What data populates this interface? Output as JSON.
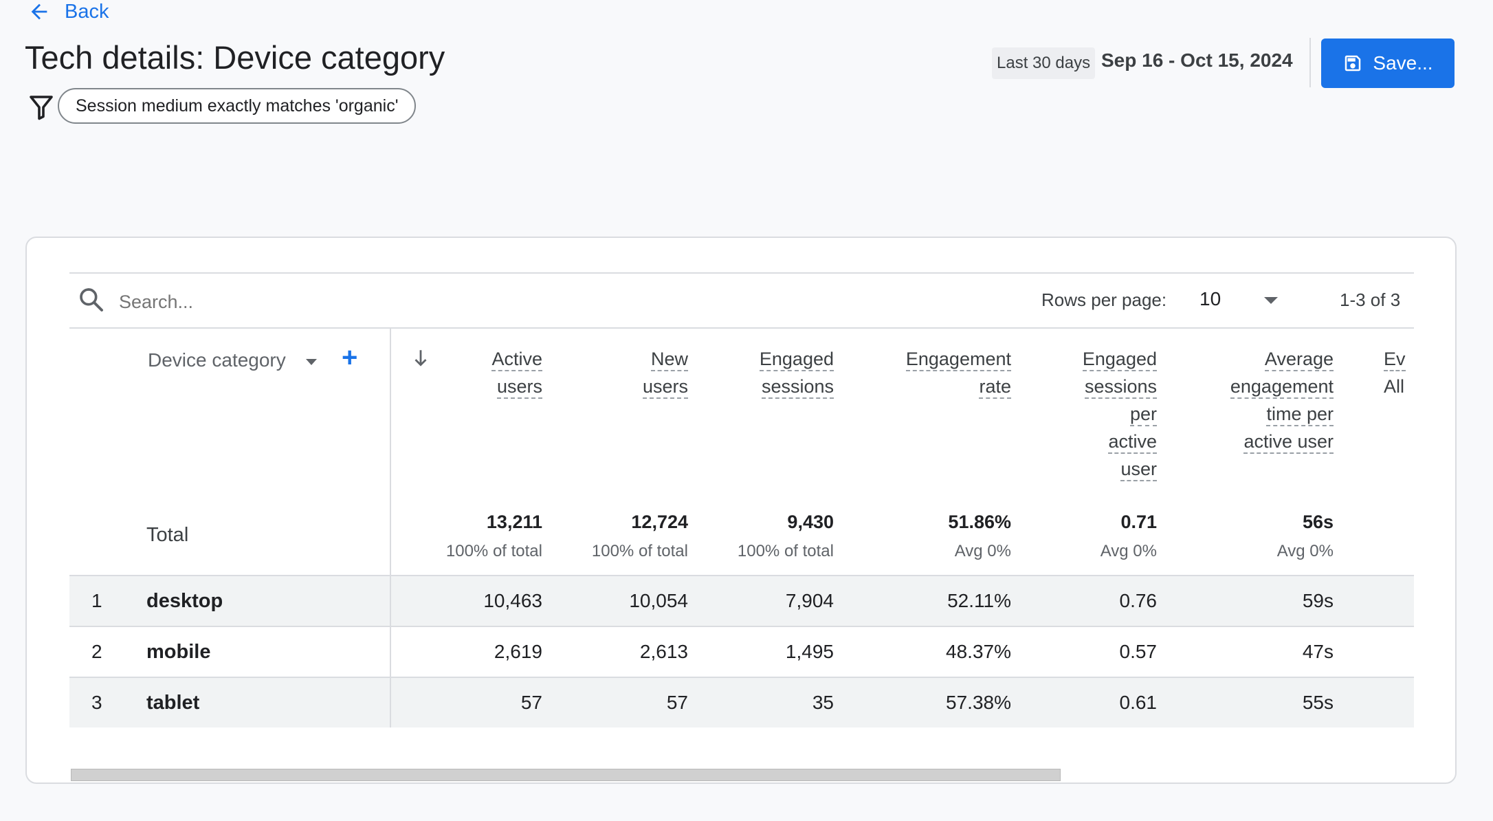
{
  "nav": {
    "back_label": "Back"
  },
  "page": {
    "title": "Tech details: Device category"
  },
  "filter": {
    "chip_label": "Session medium exactly matches 'organic'"
  },
  "date_range": {
    "preset": "Last 30 days",
    "dates": "Sep 16 - Oct 15, 2024"
  },
  "toolbar": {
    "save_label": "Save..."
  },
  "colors": {
    "accent": "#1a73e8"
  },
  "table": {
    "search_placeholder": "Search...",
    "rows_per_page_label": "Rows per page:",
    "rows_per_page_value": "10",
    "pagination": "1-3 of 3",
    "dimension_header": "Device category",
    "add_dimension": "+",
    "columns": [
      {
        "lines": [
          "Active",
          "users"
        ]
      },
      {
        "lines": [
          "New",
          "users"
        ]
      },
      {
        "lines": [
          "Engaged",
          "sessions"
        ]
      },
      {
        "lines": [
          "Engagement",
          "rate"
        ]
      },
      {
        "lines": [
          "Engaged",
          "sessions",
          "per",
          "active",
          "user"
        ]
      },
      {
        "lines": [
          "Average",
          "engagement",
          "time per",
          "active user"
        ]
      },
      {
        "lines": [
          "Ev",
          "All"
        ]
      }
    ],
    "total": {
      "label": "Total",
      "values": [
        "13,211",
        "12,724",
        "9,430",
        "51.86%",
        "0.71",
        "56s"
      ],
      "subs": [
        "100% of total",
        "100% of total",
        "100% of total",
        "Avg 0%",
        "Avg 0%",
        "Avg 0%"
      ]
    },
    "rows": [
      {
        "index": "1",
        "name": "desktop",
        "values": [
          "10,463",
          "10,054",
          "7,904",
          "52.11%",
          "0.76",
          "59s"
        ]
      },
      {
        "index": "2",
        "name": "mobile",
        "values": [
          "2,619",
          "2,613",
          "1,495",
          "48.37%",
          "0.57",
          "47s"
        ]
      },
      {
        "index": "3",
        "name": "tablet",
        "values": [
          "57",
          "57",
          "35",
          "57.38%",
          "0.61",
          "55s"
        ]
      }
    ]
  }
}
